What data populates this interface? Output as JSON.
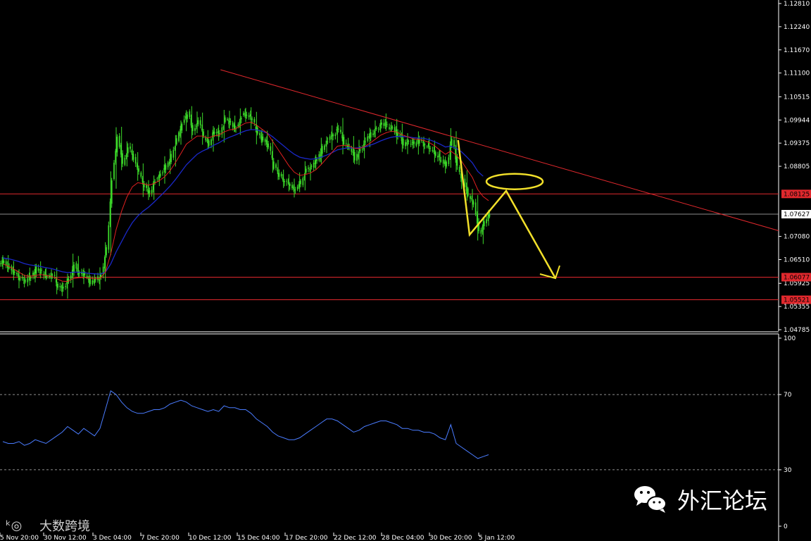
{
  "chart_data": [
    {
      "type": "candlestick",
      "ylim": [
        1.04785,
        1.1281
      ],
      "y_ticks": [
        "1.12810",
        "1.12240",
        "1.11670",
        "1.11100",
        "1.10515",
        "1.09944",
        "1.09375",
        "1.08805",
        "1.07080",
        "1.06510",
        "1.05925",
        "1.05355",
        "1.04785"
      ],
      "x_ticks": [
        "5 Nov 20:00",
        "30 Nov 12:00",
        "3 Dec 04:00",
        "7 Dec 20:00",
        "10 Dec 12:00",
        "15 Dec 04:00",
        "17 Dec 20:00",
        "22 Dec 12:00",
        "28 Dec 04:00",
        "30 Dec 20:00",
        "5 Jan 12:00"
      ],
      "current_price": {
        "label": "1.07627",
        "value": 1.07627
      },
      "horizontal_levels": [
        {
          "label": "1.08125",
          "value": 1.08125,
          "color": "#e0282d"
        },
        {
          "label": "1.06077",
          "value": 1.06077,
          "color": "#e0282d"
        },
        {
          "label": "1.05521",
          "value": 1.05521,
          "color": "#e0282d"
        }
      ],
      "close_series": [
        1.0645,
        1.0632,
        1.0618,
        1.0605,
        1.0598,
        1.061,
        1.0628,
        1.0621,
        1.0609,
        1.0615,
        1.0587,
        1.058,
        1.06,
        1.064,
        1.0618,
        1.0612,
        1.0595,
        1.0602,
        1.0608,
        1.068,
        1.085,
        1.0955,
        1.089,
        1.0925,
        1.0902,
        1.087,
        1.083,
        1.0815,
        1.0848,
        1.086,
        1.088,
        1.0905,
        1.0945,
        1.0985,
        1.101,
        1.097,
        1.099,
        1.0955,
        1.0935,
        1.097,
        1.096,
        1.0995,
        1.0985,
        1.0975,
        1.1005,
        1.101,
        1.0995,
        1.096,
        1.0945,
        1.093,
        1.088,
        1.086,
        1.0845,
        1.083,
        1.0825,
        1.084,
        1.087,
        1.088,
        1.0895,
        1.0925,
        1.0945,
        1.096,
        1.0975,
        1.0935,
        1.093,
        1.09,
        1.092,
        1.0945,
        1.096,
        1.0975,
        1.0985,
        1.098,
        1.0975,
        1.096,
        1.0935,
        1.094,
        1.0935,
        1.0945,
        1.0935,
        1.0925,
        1.091,
        1.0895,
        1.0885,
        1.095,
        1.088,
        1.0845,
        1.081,
        1.079,
        1.0715,
        1.0745,
        1.0763
      ],
      "ma_fast": {
        "color": "#e02020",
        "values": [
          1.064,
          1.0635,
          1.0628,
          1.062,
          1.0612,
          1.061,
          1.0612,
          1.0614,
          1.0612,
          1.061,
          1.0604,
          1.0598,
          1.0597,
          1.0604,
          1.0606,
          1.0607,
          1.0605,
          1.0604,
          1.0604,
          1.062,
          1.0665,
          1.0725,
          1.077,
          1.0805,
          1.083,
          1.084,
          1.0838,
          1.0834,
          1.0838,
          1.0845,
          1.0855,
          1.087,
          1.089,
          1.0912,
          1.0935,
          1.0945,
          1.0955,
          1.0955,
          1.095,
          1.0955,
          1.0957,
          1.0965,
          1.097,
          1.0972,
          1.098,
          1.0987,
          1.0989,
          1.0982,
          1.0972,
          1.0962,
          1.0942,
          1.0922,
          1.0902,
          1.0882,
          1.0866,
          1.0858,
          1.086,
          1.0864,
          1.0872,
          1.0885,
          1.09,
          1.0915,
          1.093,
          1.0932,
          1.0932,
          1.0925,
          1.0924,
          1.0929,
          1.0937,
          1.0947,
          1.0957,
          1.0963,
          1.0967,
          1.0965,
          1.0958,
          1.0953,
          1.0948,
          1.0947,
          1.0944,
          1.0939,
          1.0931,
          1.092,
          1.091,
          1.0918,
          1.0908,
          1.0893,
          1.0873,
          1.0853,
          1.0823,
          1.0806,
          1.0796
        ]
      },
      "ma_slow": {
        "color": "#1a28c8",
        "values": [
          1.0655,
          1.0653,
          1.065,
          1.0646,
          1.0641,
          1.0638,
          1.0636,
          1.0634,
          1.0631,
          1.0629,
          1.0625,
          1.0621,
          1.0619,
          1.062,
          1.062,
          1.0619,
          1.0617,
          1.0616,
          1.0615,
          1.062,
          1.064,
          1.067,
          1.0695,
          1.072,
          1.0742,
          1.0758,
          1.077,
          1.078,
          1.0792,
          1.0805,
          1.0818,
          1.0832,
          1.0848,
          1.0866,
          1.0884,
          1.0897,
          1.091,
          1.0918,
          1.0924,
          1.0932,
          1.0938,
          1.0946,
          1.0952,
          1.0957,
          1.0963,
          1.0968,
          1.0971,
          1.097,
          1.0967,
          1.0962,
          1.0953,
          1.0942,
          1.0931,
          1.092,
          1.091,
          1.0903,
          1.09,
          1.0898,
          1.0899,
          1.0903,
          1.0908,
          1.0914,
          1.0921,
          1.0924,
          1.0926,
          1.0925,
          1.0926,
          1.0928,
          1.0932,
          1.0937,
          1.0943,
          1.0948,
          1.0952,
          1.0954,
          1.0954,
          1.0953,
          1.0951,
          1.095,
          1.0949,
          1.0946,
          1.0941,
          1.0935,
          1.0928,
          1.093,
          1.0925,
          1.0916,
          1.0903,
          1.0889,
          1.0868,
          1.0856,
          null
        ]
      },
      "trendline": {
        "from": [
          0.245,
          1.1118
        ],
        "to": [
          1.0,
          1.0722
        ]
      },
      "zigzag_projection": {
        "points": [
          1.0712,
          1.082,
          1.0605
        ],
        "ellipse_center": 1.0843
      }
    },
    {
      "type": "line",
      "ylim": [
        0,
        100
      ],
      "y_ticks": [
        "100",
        "70",
        "30",
        "0"
      ],
      "levels": [
        70,
        30
      ],
      "series": [
        {
          "color": "#4a7cff",
          "values": [
            45,
            44,
            44,
            45,
            43,
            44,
            46,
            45,
            44,
            46,
            48,
            50,
            53,
            51,
            49,
            52,
            50,
            48,
            52,
            62,
            72,
            70,
            66,
            63,
            61,
            60,
            60,
            61,
            62,
            62,
            63,
            65,
            66,
            67,
            66,
            64,
            63,
            62,
            61,
            62,
            61,
            64,
            63,
            63,
            62,
            62,
            60,
            57,
            55,
            53,
            50,
            48,
            47,
            46,
            46,
            47,
            49,
            51,
            53,
            55,
            57,
            57,
            56,
            54,
            52,
            50,
            51,
            53,
            54,
            55,
            56,
            56,
            55,
            54,
            52,
            52,
            51,
            51,
            50,
            50,
            49,
            47,
            46,
            54,
            44,
            42,
            40,
            38,
            36,
            37,
            38
          ]
        }
      ]
    }
  ],
  "watermark": {
    "text": "外汇论坛"
  },
  "logo": {
    "text": "大数跨境"
  }
}
